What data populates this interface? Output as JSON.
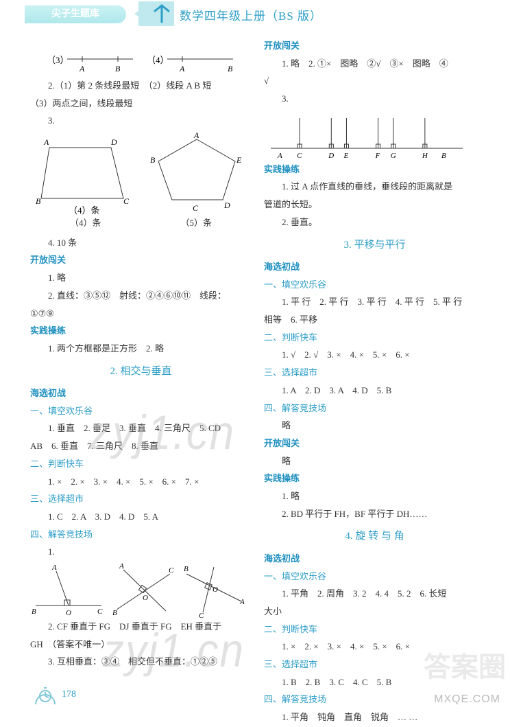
{
  "header": {
    "tab": "尖子生题库",
    "title": "数学四年级上册（BS 版）"
  },
  "page_number": "178",
  "watermarks": {
    "w1": "zyj1.cn",
    "w2": "zyj1.cn",
    "answer": "答案圈",
    "site": "MXQE.COM"
  },
  "left": {
    "seg_row": {
      "q3": "（3）",
      "q4": "（4）",
      "A": "A",
      "B": "B"
    },
    "l2": "2.（1）第 2 条线段最短　（2）线段 A B 短",
    "l2b": "（3）两点之间，线段最短",
    "l3": "3.",
    "quad": {
      "A": "A",
      "B": "B",
      "C": "C",
      "D": "D",
      "cap": "（4）条"
    },
    "pent": {
      "A": "A",
      "B": "B",
      "C": "C",
      "D": "D",
      "E": "E",
      "cap": "（5）条"
    },
    "l4": "4. 10 条",
    "kf_title": "开放闯关",
    "kf1": "1. 略",
    "kf2": "2. 直线：③⑤⑫　射线：②④⑥⑩⑪　线段：",
    "kf2b": "①⑦⑨",
    "sj_title": "实践操练",
    "sj1": "1. 两个方框都是正方形　2. 略",
    "sec2": "2. 相交与垂直",
    "hx_title": "海选初战",
    "tk_title": "一、填空欢乐谷",
    "tk1": "1. 垂直　2. 垂足　3. 垂直　4. 三角尺　5. CD",
    "tk1b": "AB　6. 垂直　7. 三角尺　8. 垂直",
    "pd_title": "二、判断快车",
    "pd1": "1. ×　2. ×　3. ×　4. ×　5. ×　6. ×　7. ×",
    "xz_title": "三、选择超市",
    "xz1": "1. C　2. A　3. D　4. D　5. A",
    "jd_title": "四、解答竞技场",
    "jd1": "1.",
    "perp_diagrams": {
      "A": "A",
      "B": "B",
      "C": "C",
      "O": "O"
    },
    "jd2": "2. CF 垂直于 FG　DJ 垂直于 FG　EH 垂直于",
    "jd2b": "GH　（答案不唯一）",
    "jd3": "3. 互相垂直：③④　相交但不垂直：①②⑤"
  },
  "right": {
    "kf_title": "开放闯关",
    "kf1": "1. 略　2. ①×　图略　②√　③×　图略　④",
    "kf1b": "√",
    "kf3": "3.",
    "numline_labels": [
      "A",
      "C",
      "D",
      "E",
      "F",
      "G",
      "H",
      "B"
    ],
    "sj_title": "实践操练",
    "sj1": "1. 过 A 点作直线的垂线，垂线段的距离就是",
    "sj1b": "管道的长短。",
    "sj2": "2. 垂直。",
    "sec3": "3. 平移与平行",
    "hx_title": "海选初战",
    "tk_title": "一、填空欢乐谷",
    "tk1": "1. 平 行　2. 平 行　3. 平 行　4. 平 行　5. 平 行",
    "tk1b": "相等　6. 平移",
    "pd_title": "二、判断快车",
    "pd1": "1. √　2. √　3. ×　4. ×　5. ×　6. ×",
    "xz_title": "三、选择超市",
    "xz1": "1. A　2. D　3. A　4. D　5. B",
    "jd_title": "四、解答竞技场",
    "jd1": "略",
    "kf2_title": "开放闯关",
    "kf2_1": "略",
    "sj2_title": "实践操练",
    "sj2_1": "1. 略",
    "sj2_2": "2. BD 平行于 FH，BF 平行于 DH……",
    "sec4": "4. 旋 转 与 角",
    "hx2_title": "海选初战",
    "tk2_title": "一、填空欢乐谷",
    "tk2_1": "1. 平角　2. 周角　3. 2　4. 4　5. 2　6. 长短",
    "tk2_1b": "大小",
    "pd2_title": "二、判断快车",
    "pd2_1": "1. ×　2. ×　3. ×　4. ×　5. ×　6. ×",
    "xz2_title": "三、选择超市",
    "xz2_1": "1. B　2. B　3. C　4. C　5. B",
    "jd2_title": "四、解答竞技场",
    "jd2_1": "1. 平角　钝角　直角　锐角　… …"
  },
  "colors": {
    "blue": "#2d9ec7",
    "line": "#333333"
  }
}
